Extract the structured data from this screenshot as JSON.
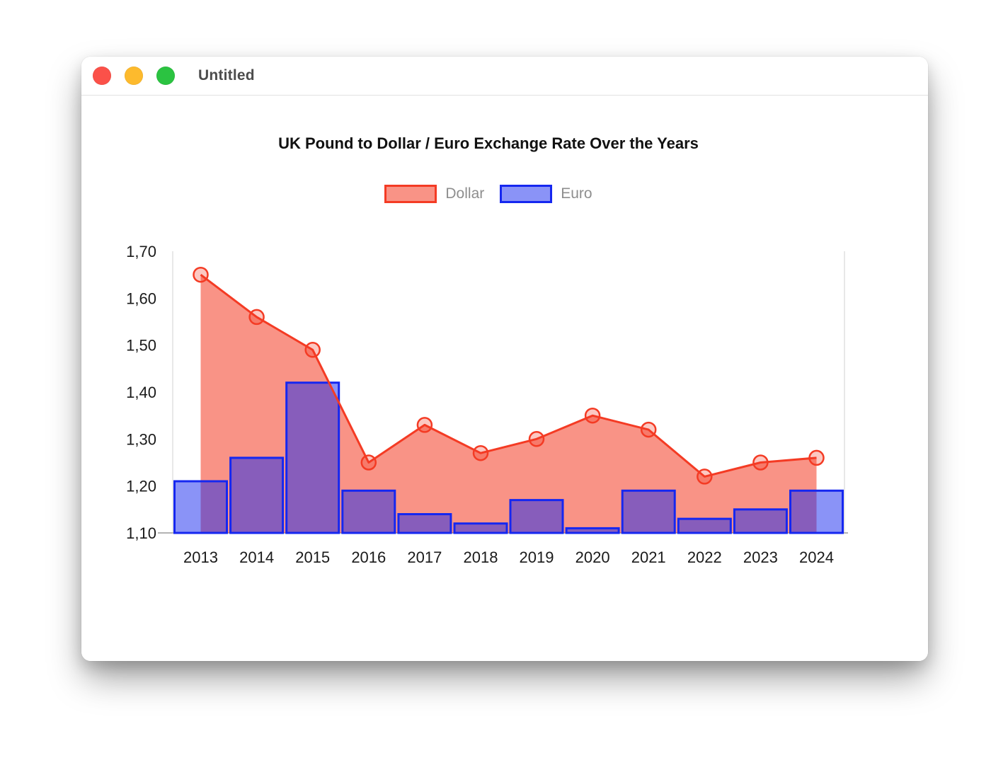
{
  "window": {
    "title": "Untitled",
    "traffic_lights": [
      {
        "name": "close",
        "color": "#fb5149"
      },
      {
        "name": "minimize",
        "color": "#fdba2d"
      },
      {
        "name": "zoom",
        "color": "#2bc341"
      }
    ]
  },
  "chart_data": {
    "type": "combo-area-line-bar",
    "title": "UK Pound to Dollar / Euro Exchange Rate Over the Years",
    "categories": [
      "2013",
      "2014",
      "2015",
      "2016",
      "2017",
      "2018",
      "2019",
      "2020",
      "2021",
      "2022",
      "2023",
      "2024"
    ],
    "series": [
      {
        "name": "Dollar",
        "type": "area-line-with-points",
        "values": [
          1.65,
          1.56,
          1.49,
          1.25,
          1.33,
          1.27,
          1.3,
          1.35,
          1.32,
          1.22,
          1.25,
          1.26
        ],
        "line_color": "#f43b24",
        "fill_color": "rgba(244,59,35,0.55)",
        "point_fill": "rgba(244,59,35,0.28)"
      },
      {
        "name": "Euro",
        "type": "bar",
        "values": [
          1.21,
          1.26,
          1.42,
          1.19,
          1.14,
          1.12,
          1.17,
          1.11,
          1.19,
          1.13,
          1.15,
          1.19
        ],
        "border_color": "#1527f0",
        "fill_color": "rgba(21,40,240,0.50)"
      }
    ],
    "y_axis": {
      "min": 1.1,
      "max": 1.7,
      "tick_labels": [
        "1,70",
        "1,60",
        "1,50",
        "1,40",
        "1,30",
        "1,20",
        "1,10"
      ],
      "tick_values": [
        1.7,
        1.6,
        1.5,
        1.4,
        1.3,
        1.2,
        1.1
      ]
    },
    "grid": {
      "horizontal_gridlines": false,
      "left_boundary_line": true,
      "right_boundary_line": true,
      "baseline": true
    },
    "legend_position": "top",
    "style": {
      "axis_color": "#b3b3b3",
      "gridline_color": "#e8e8e8",
      "label_color": "#1a1a1a",
      "legend_label_color": "#8e8e8e",
      "title_color": "#111111"
    }
  }
}
